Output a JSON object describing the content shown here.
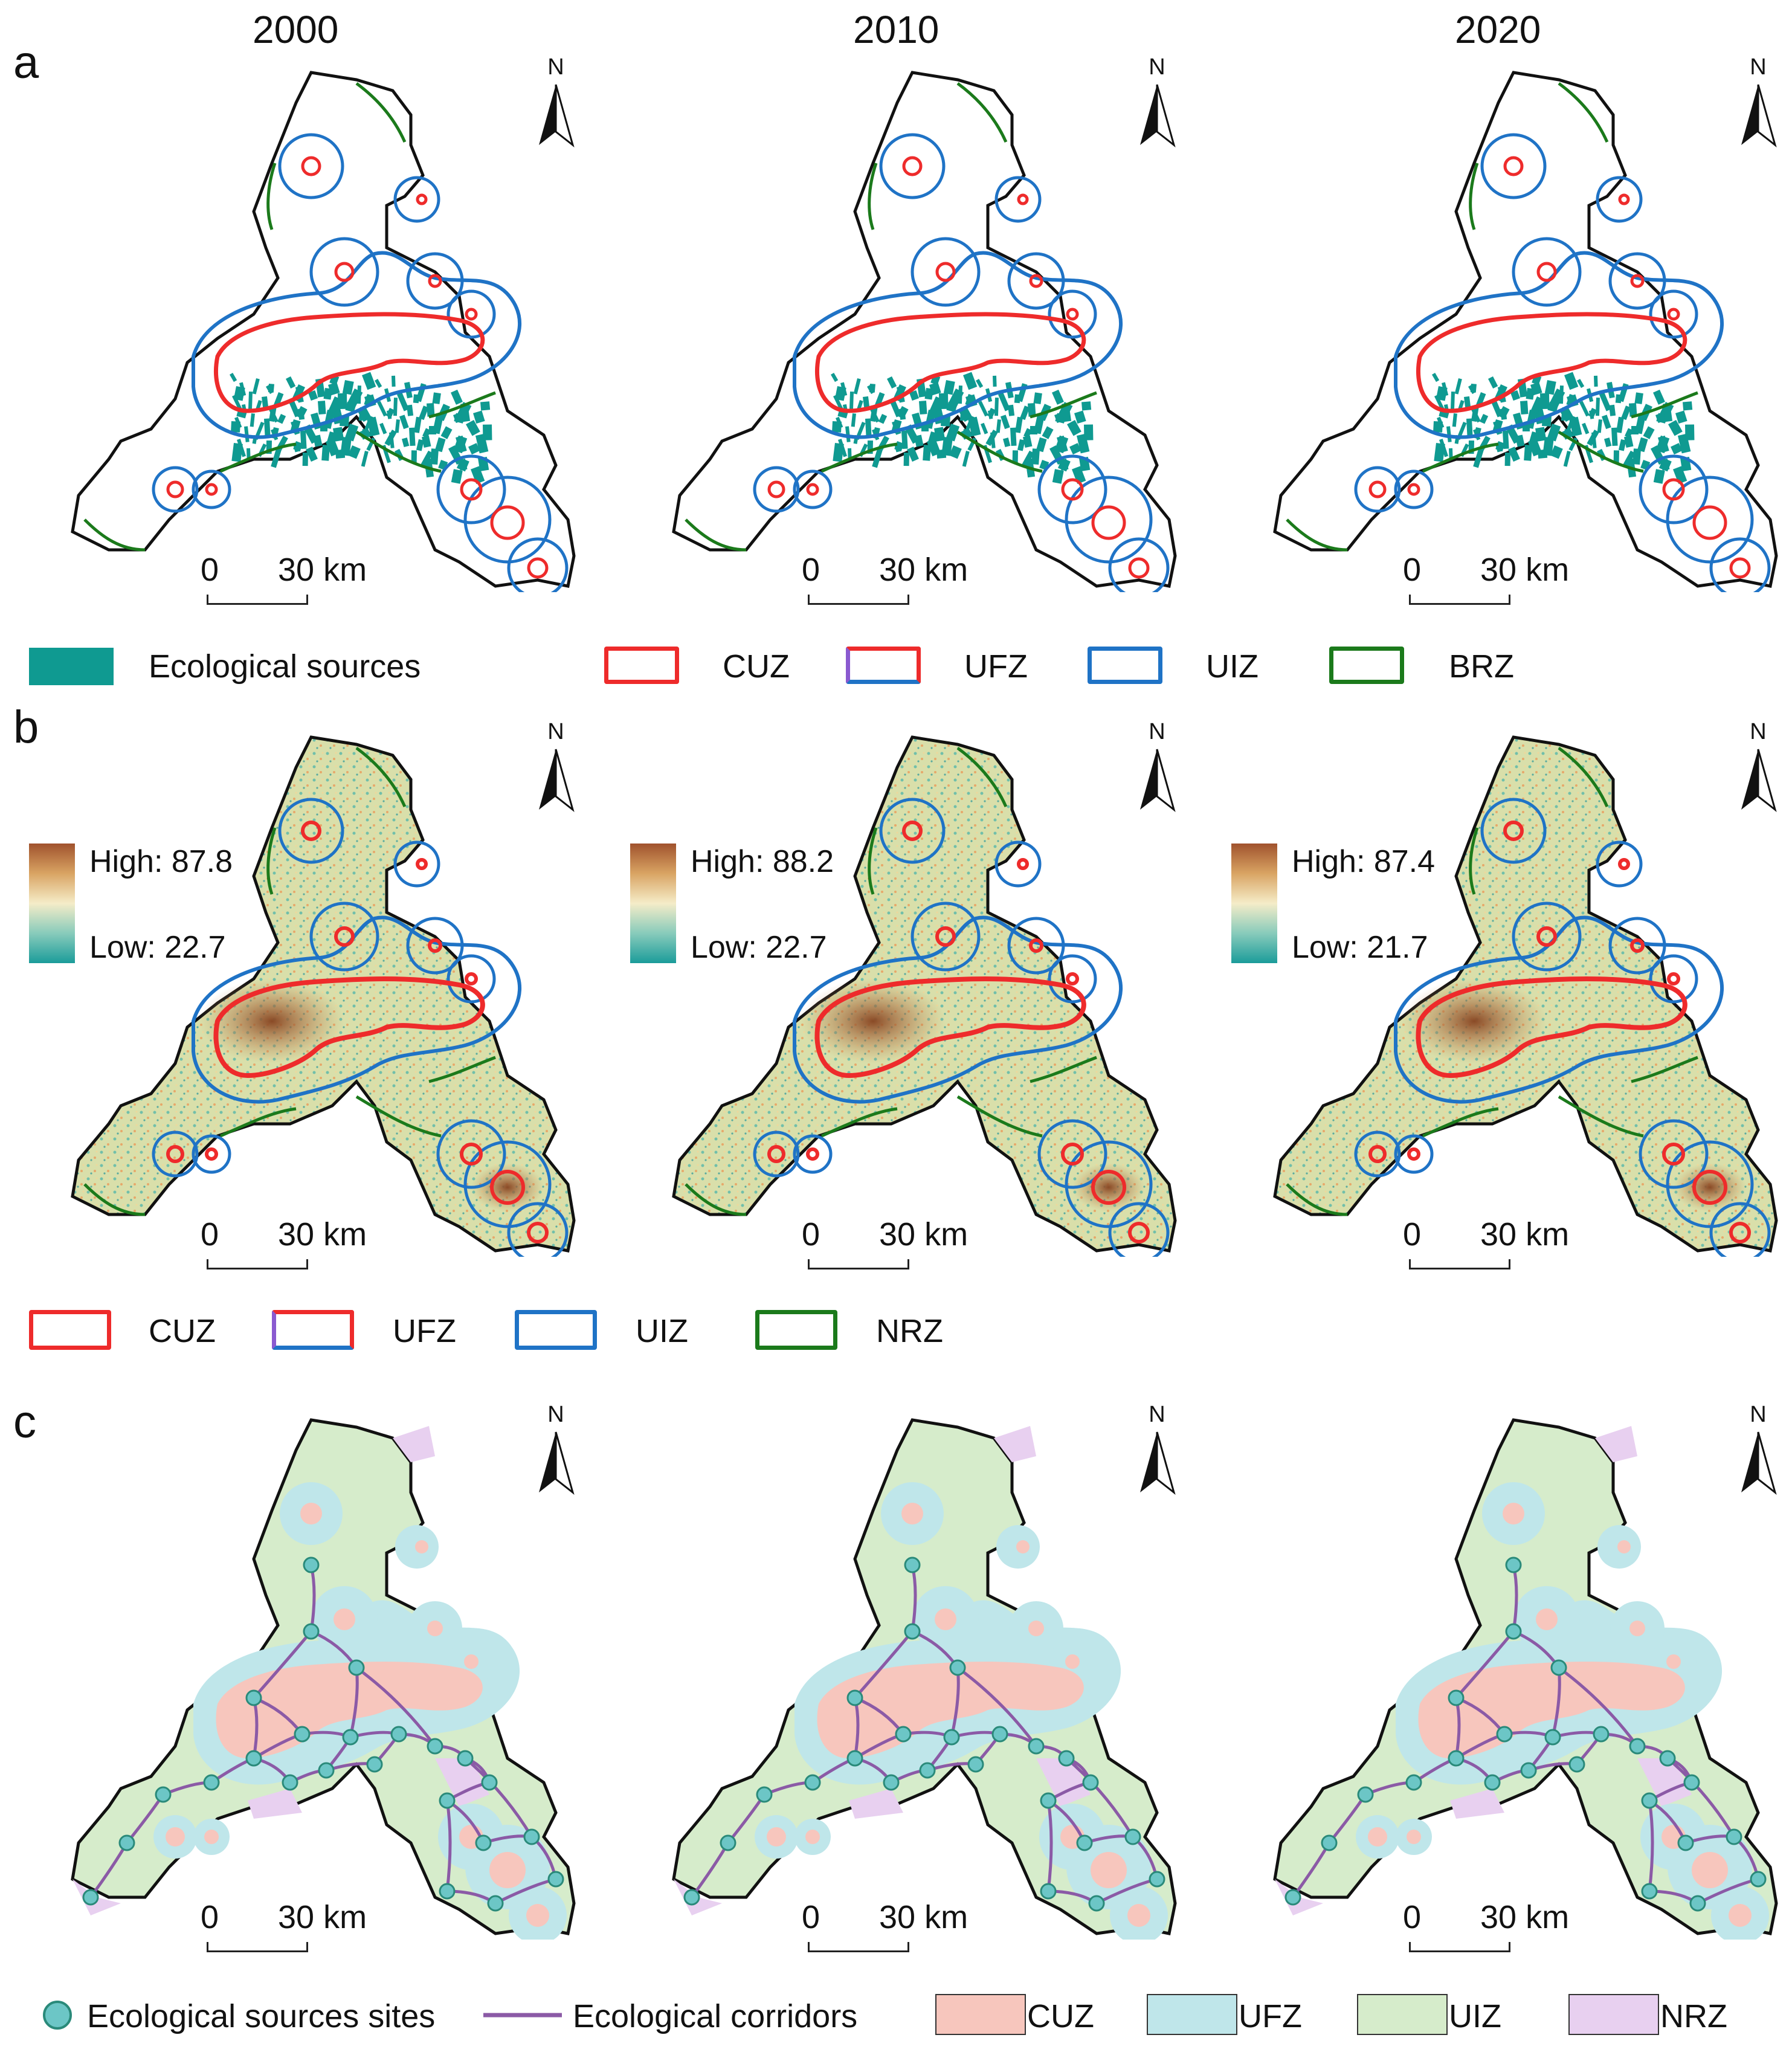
{
  "years": [
    "2000",
    "2010",
    "2020"
  ],
  "panel_labels": {
    "a": "a",
    "b": "b",
    "c": "c"
  },
  "north_label": "N",
  "scale": {
    "start": "0",
    "end": "30 km"
  },
  "colorbars": [
    {
      "high": "High: 87.8",
      "low": "Low: 22.7"
    },
    {
      "high": "High: 88.2",
      "low": "Low: 22.7"
    },
    {
      "high": "High: 87.4",
      "low": "Low: 21.7"
    }
  ],
  "legend_a": {
    "eco_sources": "Ecological sources",
    "cuz": "CUZ",
    "ufz": "UFZ",
    "uiz": "UIZ",
    "brz": "BRZ"
  },
  "legend_b": {
    "cuz": "CUZ",
    "ufz": "UFZ",
    "uiz": "UIZ",
    "nrz": "NRZ"
  },
  "legend_c": {
    "sites": "Ecological sources sites",
    "corridors": "Ecological corridors",
    "cuz": "CUZ",
    "ufz": "UFZ",
    "uiz": "UIZ",
    "nrz": "NRZ"
  },
  "colors": {
    "cuz_line": "#ee2b2b",
    "uiz_line": "#1f73c6",
    "green_line": "#1b7a1b",
    "eco_source": "#0f9a91",
    "cuz_fill": "#f7c6bd",
    "ufz_fill": "#bfe6ea",
    "uiz_fill": "#d6eccb",
    "nrz_fill": "#e8d0f0",
    "corridor": "#8b5aa6",
    "site": "#6cc6c6"
  }
}
